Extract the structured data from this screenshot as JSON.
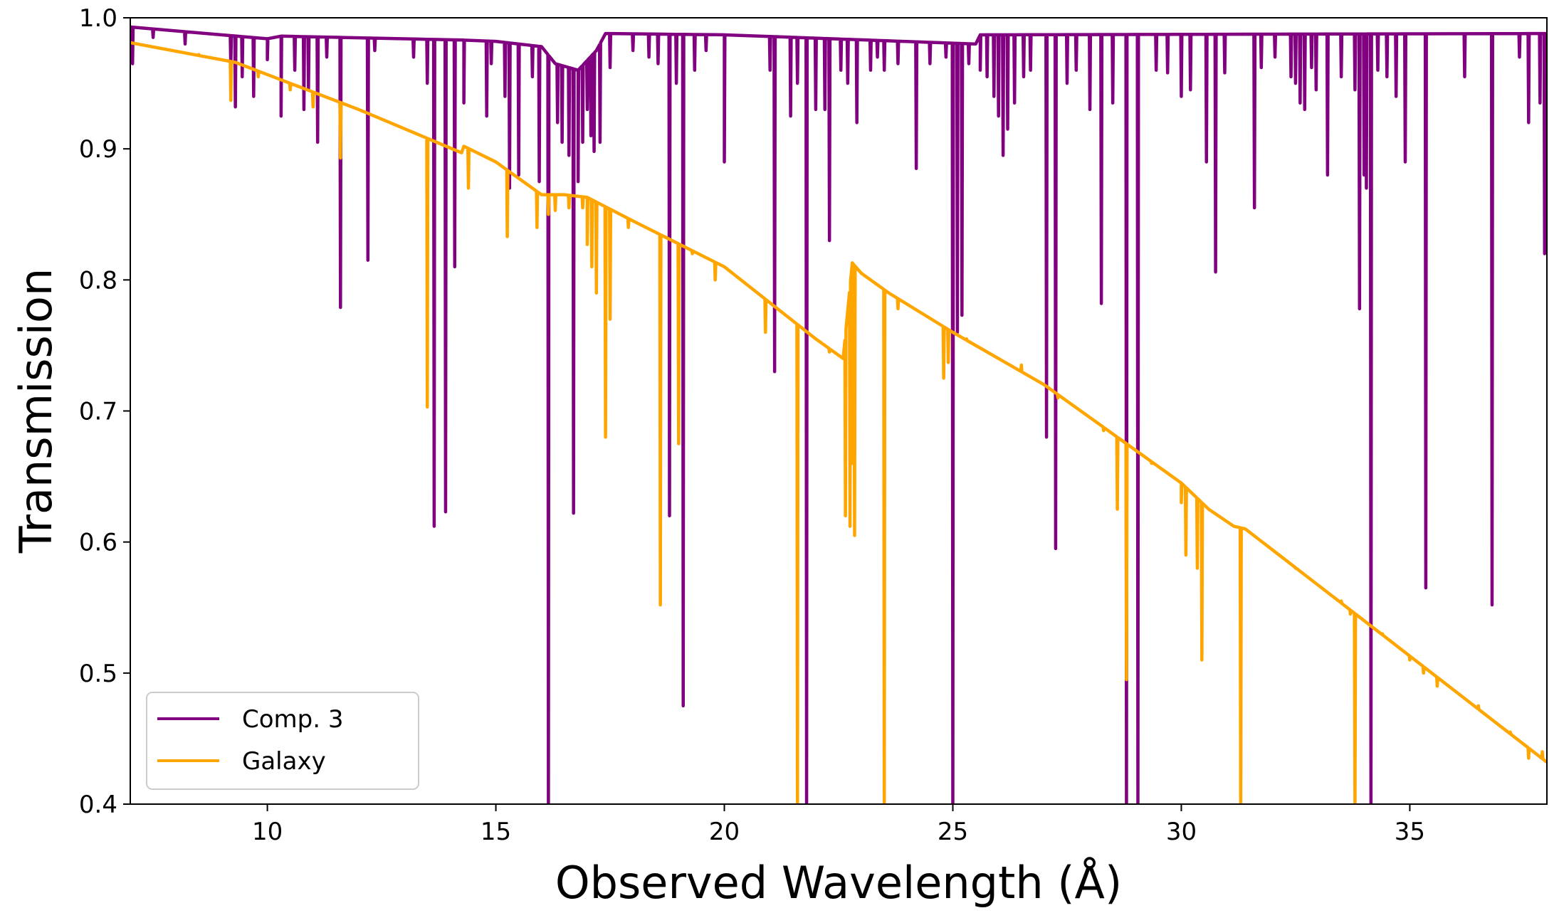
{
  "chart_data": {
    "type": "line",
    "xlabel": "Observed Wavelength (Å)",
    "ylabel": "Transmission",
    "xlim": [
      7,
      38
    ],
    "ylim": [
      0.4,
      1.0
    ],
    "x_ticks": [
      10,
      15,
      20,
      25,
      30,
      35
    ],
    "y_ticks": [
      0.4,
      0.5,
      0.6,
      0.7,
      0.8,
      0.9,
      1.0
    ],
    "x_tick_labels": [
      "10",
      "15",
      "20",
      "25",
      "30",
      "35"
    ],
    "y_tick_labels": [
      "0.4",
      "0.5",
      "0.6",
      "0.7",
      "0.8",
      "0.9",
      "1.0"
    ],
    "legend": {
      "placement": "lower-left",
      "entries": [
        {
          "label": "Comp. 3",
          "color": "#800080"
        },
        {
          "label": "Galaxy",
          "color": "#FFA500"
        }
      ]
    },
    "series": [
      {
        "name": "Comp. 3",
        "color": "#800080",
        "continuum": [
          [
            7.0,
            0.993
          ],
          [
            10.0,
            0.984
          ],
          [
            10.3,
            0.986
          ],
          [
            14.3,
            0.983
          ],
          [
            15.0,
            0.982
          ],
          [
            16.0,
            0.978
          ],
          [
            16.3,
            0.965
          ],
          [
            16.8,
            0.96
          ],
          [
            17.2,
            0.975
          ],
          [
            17.4,
            0.988
          ],
          [
            20.0,
            0.987
          ],
          [
            25.5,
            0.98
          ],
          [
            25.6,
            0.987
          ],
          [
            38.0,
            0.988
          ]
        ],
        "absorption_lines": [
          [
            7.05,
            0.965
          ],
          [
            7.5,
            0.985
          ],
          [
            8.2,
            0.98
          ],
          [
            9.2,
            0.962
          ],
          [
            9.3,
            0.932
          ],
          [
            9.45,
            0.955
          ],
          [
            9.7,
            0.94
          ],
          [
            10.0,
            0.968
          ],
          [
            10.3,
            0.925
          ],
          [
            10.6,
            0.96
          ],
          [
            10.8,
            0.93
          ],
          [
            10.9,
            0.945
          ],
          [
            11.1,
            0.905
          ],
          [
            11.3,
            0.97
          ],
          [
            11.6,
            0.779
          ],
          [
            12.2,
            0.815
          ],
          [
            12.35,
            0.975
          ],
          [
            13.2,
            0.97
          ],
          [
            13.5,
            0.95
          ],
          [
            13.65,
            0.612
          ],
          [
            13.9,
            0.623
          ],
          [
            14.1,
            0.81
          ],
          [
            14.3,
            0.935
          ],
          [
            14.8,
            0.925
          ],
          [
            14.9,
            0.965
          ],
          [
            15.2,
            0.94
          ],
          [
            15.3,
            0.87
          ],
          [
            15.5,
            0.88
          ],
          [
            15.8,
            0.955
          ],
          [
            15.95,
            0.875
          ],
          [
            16.15,
            0.395
          ],
          [
            16.35,
            0.92
          ],
          [
            16.45,
            0.905
          ],
          [
            16.6,
            0.895
          ],
          [
            16.7,
            0.622
          ],
          [
            16.8,
            0.875
          ],
          [
            16.9,
            0.905
          ],
          [
            17.0,
            0.93
          ],
          [
            17.08,
            0.91
          ],
          [
            17.15,
            0.898
          ],
          [
            17.28,
            0.905
          ],
          [
            17.5,
            0.962
          ],
          [
            18.0,
            0.975
          ],
          [
            18.35,
            0.97
          ],
          [
            18.55,
            0.965
          ],
          [
            18.8,
            0.62
          ],
          [
            18.95,
            0.95
          ],
          [
            19.1,
            0.475
          ],
          [
            19.35,
            0.96
          ],
          [
            19.6,
            0.975
          ],
          [
            20.0,
            0.89
          ],
          [
            21.0,
            0.96
          ],
          [
            21.1,
            0.73
          ],
          [
            21.45,
            0.925
          ],
          [
            21.6,
            0.95
          ],
          [
            21.8,
            0.395
          ],
          [
            22.0,
            0.93
          ],
          [
            22.2,
            0.93
          ],
          [
            22.3,
            0.83
          ],
          [
            22.55,
            0.96
          ],
          [
            22.7,
            0.95
          ],
          [
            22.9,
            0.92
          ],
          [
            23.2,
            0.96
          ],
          [
            23.35,
            0.97
          ],
          [
            23.5,
            0.96
          ],
          [
            23.8,
            0.965
          ],
          [
            24.2,
            0.885
          ],
          [
            24.5,
            0.965
          ],
          [
            24.85,
            0.97
          ],
          [
            25.0,
            0.395
          ],
          [
            25.1,
            0.76
          ],
          [
            25.2,
            0.773
          ],
          [
            25.35,
            0.965
          ],
          [
            25.6,
            0.96
          ],
          [
            25.75,
            0.955
          ],
          [
            25.9,
            0.94
          ],
          [
            26.0,
            0.925
          ],
          [
            26.1,
            0.895
          ],
          [
            26.2,
            0.915
          ],
          [
            26.35,
            0.935
          ],
          [
            26.55,
            0.955
          ],
          [
            26.7,
            0.96
          ],
          [
            27.05,
            0.68
          ],
          [
            27.25,
            0.595
          ],
          [
            27.5,
            0.95
          ],
          [
            27.7,
            0.96
          ],
          [
            28.0,
            0.93
          ],
          [
            28.25,
            0.782
          ],
          [
            28.5,
            0.935
          ],
          [
            28.8,
            0.395
          ],
          [
            29.05,
            0.395
          ],
          [
            29.45,
            0.96
          ],
          [
            29.7,
            0.958
          ],
          [
            30.0,
            0.94
          ],
          [
            30.2,
            0.945
          ],
          [
            30.55,
            0.89
          ],
          [
            30.75,
            0.806
          ],
          [
            30.95,
            0.958
          ],
          [
            31.6,
            0.855
          ],
          [
            31.75,
            0.962
          ],
          [
            32.05,
            0.97
          ],
          [
            32.4,
            0.955
          ],
          [
            32.5,
            0.95
          ],
          [
            32.6,
            0.935
          ],
          [
            32.7,
            0.93
          ],
          [
            32.85,
            0.962
          ],
          [
            32.95,
            0.945
          ],
          [
            33.2,
            0.88
          ],
          [
            33.5,
            0.955
          ],
          [
            33.8,
            0.945
          ],
          [
            33.9,
            0.778
          ],
          [
            34.0,
            0.88
          ],
          [
            34.05,
            0.87
          ],
          [
            34.15,
            0.395
          ],
          [
            34.3,
            0.96
          ],
          [
            34.5,
            0.955
          ],
          [
            34.7,
            0.94
          ],
          [
            34.9,
            0.89
          ],
          [
            35.35,
            0.565
          ],
          [
            36.2,
            0.955
          ],
          [
            36.8,
            0.552
          ],
          [
            37.4,
            0.97
          ],
          [
            37.6,
            0.92
          ],
          [
            37.85,
            0.935
          ],
          [
            37.95,
            0.82
          ],
          [
            38.0,
            0.94
          ]
        ]
      },
      {
        "name": "Galaxy",
        "color": "#FFA500",
        "continuum": [
          [
            7.0,
            0.981
          ],
          [
            9.3,
            0.966
          ],
          [
            12.0,
            0.93
          ],
          [
            14.25,
            0.897
          ],
          [
            14.3,
            0.902
          ],
          [
            15.0,
            0.89
          ],
          [
            16.0,
            0.865
          ],
          [
            16.5,
            0.865
          ],
          [
            17.0,
            0.863
          ],
          [
            18.0,
            0.845
          ],
          [
            20.0,
            0.81
          ],
          [
            22.0,
            0.755
          ],
          [
            22.6,
            0.74
          ],
          [
            22.8,
            0.813
          ],
          [
            23.0,
            0.805
          ],
          [
            23.6,
            0.79
          ],
          [
            25.0,
            0.76
          ],
          [
            27.0,
            0.72
          ],
          [
            30.0,
            0.645
          ],
          [
            30.6,
            0.625
          ],
          [
            31.15,
            0.612
          ],
          [
            31.4,
            0.61
          ],
          [
            34.0,
            0.54
          ],
          [
            38.0,
            0.432
          ]
        ],
        "absorption_lines": [
          [
            8.5,
            0.972
          ],
          [
            9.2,
            0.937
          ],
          [
            9.8,
            0.955
          ],
          [
            10.5,
            0.945
          ],
          [
            11.0,
            0.932
          ],
          [
            11.6,
            0.893
          ],
          [
            13.5,
            0.703
          ],
          [
            14.4,
            0.87
          ],
          [
            15.25,
            0.833
          ],
          [
            15.9,
            0.84
          ],
          [
            16.15,
            0.85
          ],
          [
            16.3,
            0.853
          ],
          [
            16.6,
            0.855
          ],
          [
            16.9,
            0.855
          ],
          [
            17.0,
            0.827
          ],
          [
            17.1,
            0.81
          ],
          [
            17.2,
            0.79
          ],
          [
            17.4,
            0.68
          ],
          [
            17.5,
            0.77
          ],
          [
            17.9,
            0.84
          ],
          [
            18.6,
            0.552
          ],
          [
            19.0,
            0.675
          ],
          [
            19.3,
            0.82
          ],
          [
            19.8,
            0.8
          ],
          [
            20.9,
            0.76
          ],
          [
            21.6,
            0.395
          ],
          [
            22.3,
            0.745
          ],
          [
            22.65,
            0.62
          ],
          [
            22.75,
            0.612
          ],
          [
            22.8,
            0.66
          ],
          [
            22.85,
            0.605
          ],
          [
            23.5,
            0.395
          ],
          [
            23.8,
            0.778
          ],
          [
            24.8,
            0.725
          ],
          [
            24.9,
            0.737
          ],
          [
            25.3,
            0.755
          ],
          [
            26.0,
            0.74
          ],
          [
            26.5,
            0.735
          ],
          [
            27.3,
            0.71
          ],
          [
            28.3,
            0.685
          ],
          [
            28.6,
            0.625
          ],
          [
            28.8,
            0.495
          ],
          [
            29.35,
            0.66
          ],
          [
            30.0,
            0.63
          ],
          [
            30.1,
            0.59
          ],
          [
            30.35,
            0.58
          ],
          [
            30.45,
            0.51
          ],
          [
            31.3,
            0.395
          ],
          [
            32.5,
            0.58
          ],
          [
            33.5,
            0.555
          ],
          [
            33.7,
            0.545
          ],
          [
            33.8,
            0.395
          ],
          [
            34.4,
            0.53
          ],
          [
            35.0,
            0.51
          ],
          [
            35.3,
            0.5
          ],
          [
            35.6,
            0.49
          ],
          [
            36.5,
            0.475
          ],
          [
            37.2,
            0.455
          ],
          [
            37.6,
            0.435
          ],
          [
            37.9,
            0.44
          ]
        ]
      }
    ]
  }
}
